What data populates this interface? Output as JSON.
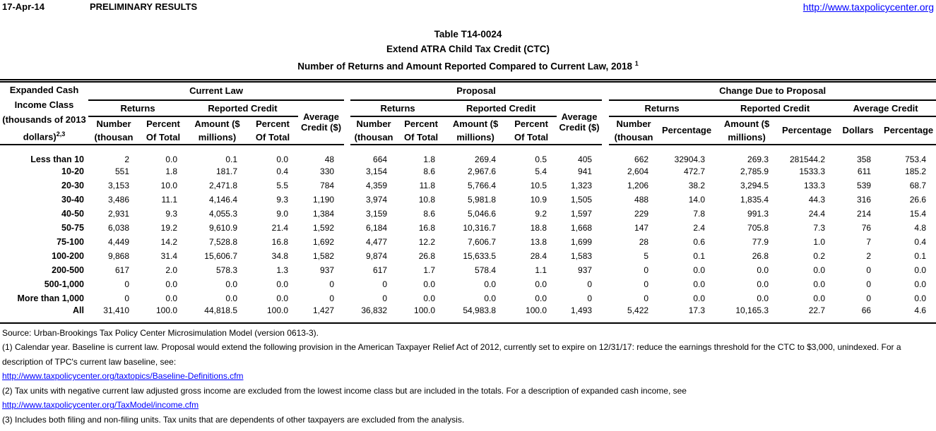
{
  "header": {
    "date": "17-Apr-14",
    "preliminary": "PRELIMINARY RESULTS",
    "site_url": "http://www.taxpolicycenter.org"
  },
  "title": {
    "line1": "Table T14-0024",
    "line2": "Extend ATRA Child Tax Credit (CTC)",
    "line3": "Number of Returns and Amount Reported Compared to Current Law, 2018",
    "line3_superscript": "1"
  },
  "table": {
    "row_header": {
      "lines": [
        "Expanded Cash",
        "Income Class",
        "(thousands of 2013"
      ],
      "last_line": "dollars)",
      "superscript": "2,3"
    },
    "groups": [
      {
        "label": "Current Law"
      },
      {
        "label": "Proposal"
      },
      {
        "label": "Change Due to Proposal"
      }
    ],
    "sub": {
      "returns": "Returns",
      "reported_credit": "Reported Credit",
      "average_line1": "Average",
      "average_line2": "Credit ($)",
      "average_credit": "Average Credit"
    },
    "cols": {
      "number1": "Number",
      "number2": "(thousan",
      "percent1": "Percent",
      "percent2": "Of Total",
      "amount1": "Amount ($",
      "amount2": "millions)",
      "percentage": "Percentage",
      "dollars": "Dollars"
    },
    "rows": [
      {
        "label": "Less than 10",
        "values": [
          "2",
          "0.0",
          "0.1",
          "0.0",
          "48",
          "664",
          "1.8",
          "269.4",
          "0.5",
          "405",
          "662",
          "32904.3",
          "269.3",
          "281544.2",
          "358",
          "753.4"
        ]
      },
      {
        "label": "10-20",
        "values": [
          "551",
          "1.8",
          "181.7",
          "0.4",
          "330",
          "3,154",
          "8.6",
          "2,967.6",
          "5.4",
          "941",
          "2,604",
          "472.7",
          "2,785.9",
          "1533.3",
          "611",
          "185.2"
        ]
      },
      {
        "label": "20-30",
        "values": [
          "3,153",
          "10.0",
          "2,471.8",
          "5.5",
          "784",
          "4,359",
          "11.8",
          "5,766.4",
          "10.5",
          "1,323",
          "1,206",
          "38.2",
          "3,294.5",
          "133.3",
          "539",
          "68.7"
        ]
      },
      {
        "label": "30-40",
        "values": [
          "3,486",
          "11.1",
          "4,146.4",
          "9.3",
          "1,190",
          "3,974",
          "10.8",
          "5,981.8",
          "10.9",
          "1,505",
          "488",
          "14.0",
          "1,835.4",
          "44.3",
          "316",
          "26.6"
        ]
      },
      {
        "label": "40-50",
        "values": [
          "2,931",
          "9.3",
          "4,055.3",
          "9.0",
          "1,384",
          "3,159",
          "8.6",
          "5,046.6",
          "9.2",
          "1,597",
          "229",
          "7.8",
          "991.3",
          "24.4",
          "214",
          "15.4"
        ]
      },
      {
        "label": "50-75",
        "values": [
          "6,038",
          "19.2",
          "9,610.9",
          "21.4",
          "1,592",
          "6,184",
          "16.8",
          "10,316.7",
          "18.8",
          "1,668",
          "147",
          "2.4",
          "705.8",
          "7.3",
          "76",
          "4.8"
        ]
      },
      {
        "label": "75-100",
        "values": [
          "4,449",
          "14.2",
          "7,528.8",
          "16.8",
          "1,692",
          "4,477",
          "12.2",
          "7,606.7",
          "13.8",
          "1,699",
          "28",
          "0.6",
          "77.9",
          "1.0",
          "7",
          "0.4"
        ]
      },
      {
        "label": "100-200",
        "values": [
          "9,868",
          "31.4",
          "15,606.7",
          "34.8",
          "1,582",
          "9,874",
          "26.8",
          "15,633.5",
          "28.4",
          "1,583",
          "5",
          "0.1",
          "26.8",
          "0.2",
          "2",
          "0.1"
        ]
      },
      {
        "label": "200-500",
        "values": [
          "617",
          "2.0",
          "578.3",
          "1.3",
          "937",
          "617",
          "1.7",
          "578.4",
          "1.1",
          "937",
          "0",
          "0.0",
          "0.0",
          "0.0",
          "0",
          "0.0"
        ]
      },
      {
        "label": "500-1,000",
        "values": [
          "0",
          "0.0",
          "0.0",
          "0.0",
          "0",
          "0",
          "0.0",
          "0.0",
          "0.0",
          "0",
          "0",
          "0.0",
          "0.0",
          "0.0",
          "0",
          "0.0"
        ]
      },
      {
        "label": "More than 1,000",
        "values": [
          "0",
          "0.0",
          "0.0",
          "0.0",
          "0",
          "0",
          "0.0",
          "0.0",
          "0.0",
          "0",
          "0",
          "0.0",
          "0.0",
          "0.0",
          "0",
          "0.0"
        ]
      },
      {
        "label": "All",
        "values": [
          "31,410",
          "100.0",
          "44,818.5",
          "100.0",
          "1,427",
          "36,832",
          "100.0",
          "54,983.8",
          "100.0",
          "1,493",
          "5,422",
          "17.3",
          "10,165.3",
          "22.7",
          "66",
          "4.6"
        ]
      }
    ]
  },
  "footnotes": {
    "source": "Source: Urban-Brookings Tax Policy Center Microsimulation Model (version 0613-3).",
    "note1": "(1) Calendar year. Baseline is current law. Proposal would extend the following provision in the American Taxpayer Relief Act of 2012, currently set to expire on 12/31/17: reduce the earnings threshold for the CTC to $3,000, unindexed. For a description of TPC's current law baseline, see:",
    "link1": "http://www.taxpolicycenter.org/taxtopics/Baseline-Definitions.cfm",
    "note2": "(2) Tax units with negative current law adjusted gross income are excluded from the lowest income class but are included in the totals. For a description of expanded cash income, see",
    "link2": "http://www.taxpolicycenter.org/TaxModel/income.cfm",
    "note3": "(3) Includes both filing and non-filing units.  Tax units that are dependents of other taxpayers are excluded from the analysis."
  }
}
